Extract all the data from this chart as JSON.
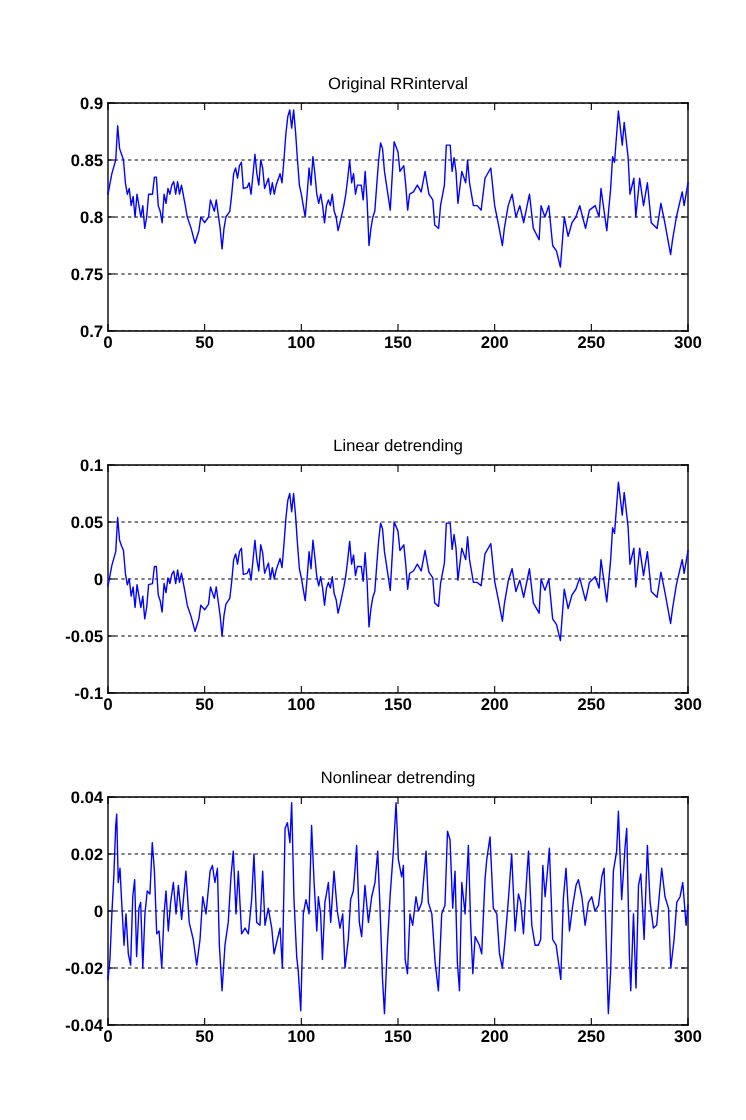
{
  "chart_data": [
    {
      "type": "line",
      "title": "Original RRinterval",
      "grid": "y",
      "line_style": "solid",
      "xlim": [
        0,
        300
      ],
      "xticks": [
        0,
        50,
        100,
        150,
        200,
        250,
        300
      ],
      "ylim": [
        0.7,
        0.9
      ],
      "yticks": [
        0.7,
        0.75,
        0.8,
        0.85,
        0.9
      ],
      "x": [
        0,
        2,
        4,
        5,
        6,
        7,
        8,
        9,
        10,
        11,
        12,
        13,
        14,
        15,
        16,
        17,
        18,
        19,
        20,
        21,
        23,
        24,
        25,
        26,
        27,
        28,
        29,
        30,
        31,
        32,
        33,
        34,
        35,
        36,
        37,
        38,
        40,
        41,
        43,
        45,
        47,
        48,
        50,
        52,
        53,
        55,
        56,
        58,
        59,
        60,
        61,
        63,
        64,
        65,
        66,
        67,
        68,
        69,
        70,
        72,
        73,
        74,
        76,
        77,
        78,
        79,
        80,
        81,
        83,
        84,
        85,
        86,
        87,
        89,
        90,
        91,
        92,
        93,
        94,
        95,
        96,
        97,
        98,
        99,
        100,
        101,
        102,
        103,
        104,
        105,
        106,
        107,
        108,
        109,
        110,
        111,
        112,
        113,
        114,
        115,
        116,
        117,
        118,
        119,
        120,
        122,
        123,
        124,
        125,
        126,
        127,
        128,
        129,
        131,
        132,
        133,
        134,
        135,
        136,
        137,
        138,
        139,
        140,
        141,
        142,
        143,
        146,
        148,
        150,
        151,
        153,
        154,
        155,
        156,
        158,
        160,
        162,
        164,
        166,
        168,
        169,
        171,
        172,
        174,
        175,
        177,
        178,
        179,
        180,
        181,
        183,
        185,
        186,
        187,
        189,
        191,
        193,
        195,
        198,
        200,
        202,
        204,
        205,
        207,
        209,
        211,
        213,
        215,
        218,
        220,
        223,
        224,
        226,
        228,
        230,
        232,
        234,
        236,
        238,
        240,
        242,
        244,
        247,
        249,
        252,
        254,
        255,
        258,
        260,
        261,
        262,
        264,
        266,
        267,
        269,
        270,
        272,
        273,
        275,
        277,
        279,
        281,
        284,
        286,
        288,
        291,
        292,
        294,
        297,
        298,
        300
      ],
      "series": [
        {
          "color": "#0000ff",
          "values": [
            0.82,
            0.838,
            0.85,
            0.88,
            0.86,
            0.855,
            0.85,
            0.83,
            0.82,
            0.825,
            0.81,
            0.818,
            0.8,
            0.82,
            0.81,
            0.8,
            0.81,
            0.79,
            0.8,
            0.82,
            0.82,
            0.835,
            0.835,
            0.81,
            0.805,
            0.795,
            0.82,
            0.812,
            0.825,
            0.82,
            0.828,
            0.831,
            0.82,
            0.831,
            0.82,
            0.828,
            0.81,
            0.8,
            0.79,
            0.777,
            0.788,
            0.8,
            0.795,
            0.8,
            0.815,
            0.805,
            0.815,
            0.79,
            0.772,
            0.79,
            0.8,
            0.805,
            0.82,
            0.838,
            0.843,
            0.834,
            0.845,
            0.848,
            0.825,
            0.826,
            0.83,
            0.82,
            0.855,
            0.838,
            0.828,
            0.85,
            0.843,
            0.825,
            0.834,
            0.82,
            0.83,
            0.82,
            0.828,
            0.838,
            0.83,
            0.85,
            0.873,
            0.888,
            0.894,
            0.878,
            0.894,
            0.875,
            0.85,
            0.828,
            0.82,
            0.81,
            0.8,
            0.82,
            0.843,
            0.828,
            0.853,
            0.838,
            0.82,
            0.812,
            0.82,
            0.81,
            0.795,
            0.81,
            0.815,
            0.81,
            0.82,
            0.805,
            0.8,
            0.788,
            0.795,
            0.81,
            0.82,
            0.834,
            0.85,
            0.83,
            0.838,
            0.82,
            0.828,
            0.828,
            0.815,
            0.84,
            0.815,
            0.775,
            0.79,
            0.8,
            0.805,
            0.828,
            0.85,
            0.865,
            0.86,
            0.84,
            0.806,
            0.866,
            0.857,
            0.84,
            0.845,
            0.828,
            0.806,
            0.82,
            0.822,
            0.828,
            0.822,
            0.84,
            0.82,
            0.815,
            0.793,
            0.79,
            0.81,
            0.828,
            0.863,
            0.863,
            0.84,
            0.852,
            0.84,
            0.812,
            0.84,
            0.83,
            0.85,
            0.83,
            0.81,
            0.81,
            0.806,
            0.834,
            0.843,
            0.81,
            0.793,
            0.775,
            0.79,
            0.81,
            0.82,
            0.8,
            0.81,
            0.795,
            0.82,
            0.79,
            0.78,
            0.81,
            0.8,
            0.81,
            0.775,
            0.77,
            0.756,
            0.8,
            0.783,
            0.795,
            0.8,
            0.81,
            0.79,
            0.806,
            0.81,
            0.8,
            0.825,
            0.788,
            0.825,
            0.853,
            0.848,
            0.893,
            0.863,
            0.883,
            0.853,
            0.82,
            0.834,
            0.8,
            0.834,
            0.81,
            0.83,
            0.795,
            0.79,
            0.812,
            0.795,
            0.767,
            0.78,
            0.8,
            0.822,
            0.81,
            0.83
          ]
        }
      ]
    },
    {
      "type": "line",
      "title": "Linear detrending",
      "grid": "y",
      "line_style": "solid",
      "xlim": [
        0,
        300
      ],
      "xticks": [
        0,
        50,
        100,
        150,
        200,
        250,
        300
      ],
      "ylim": [
        -0.1,
        0.1
      ],
      "yticks": [
        -0.1,
        -0.05,
        0,
        0.05,
        0.1
      ],
      "x": [
        0,
        2,
        4,
        5,
        6,
        7,
        8,
        9,
        10,
        11,
        12,
        13,
        14,
        15,
        16,
        17,
        18,
        19,
        20,
        21,
        23,
        24,
        25,
        26,
        27,
        28,
        29,
        30,
        31,
        32,
        33,
        34,
        35,
        36,
        37,
        38,
        40,
        41,
        43,
        45,
        47,
        48,
        50,
        52,
        53,
        55,
        56,
        58,
        59,
        60,
        61,
        63,
        64,
        65,
        66,
        67,
        68,
        69,
        70,
        72,
        73,
        74,
        76,
        77,
        78,
        79,
        80,
        81,
        83,
        84,
        85,
        86,
        87,
        89,
        90,
        91,
        92,
        93,
        94,
        95,
        96,
        97,
        98,
        99,
        100,
        101,
        102,
        103,
        104,
        105,
        106,
        107,
        108,
        109,
        110,
        111,
        112,
        113,
        114,
        115,
        116,
        117,
        118,
        119,
        120,
        122,
        123,
        124,
        125,
        126,
        127,
        128,
        129,
        131,
        132,
        133,
        134,
        135,
        136,
        137,
        138,
        139,
        140,
        141,
        142,
        143,
        146,
        148,
        150,
        151,
        153,
        154,
        155,
        156,
        158,
        160,
        162,
        164,
        166,
        168,
        169,
        171,
        172,
        174,
        175,
        177,
        178,
        179,
        180,
        181,
        183,
        185,
        186,
        187,
        189,
        191,
        193,
        195,
        198,
        200,
        202,
        204,
        205,
        207,
        209,
        211,
        213,
        215,
        218,
        220,
        223,
        224,
        226,
        228,
        230,
        232,
        234,
        236,
        238,
        240,
        242,
        244,
        247,
        249,
        252,
        254,
        255,
        258,
        260,
        261,
        262,
        264,
        266,
        267,
        269,
        270,
        272,
        273,
        275,
        277,
        279,
        281,
        284,
        286,
        288,
        291,
        292,
        294,
        297,
        298,
        300
      ],
      "series": [
        {
          "color": "#0000ff",
          "values": [
            -0.006,
            0.012,
            0.024,
            0.054,
            0.034,
            0.029,
            0.025,
            0.005,
            -0.005,
            0.0,
            -0.015,
            -0.007,
            -0.025,
            -0.005,
            -0.015,
            -0.025,
            -0.015,
            -0.035,
            -0.025,
            -0.005,
            -0.004,
            0.011,
            0.011,
            -0.014,
            -0.019,
            -0.029,
            -0.004,
            -0.012,
            0.001,
            -0.004,
            0.004,
            0.007,
            -0.004,
            0.008,
            -0.003,
            0.005,
            -0.013,
            -0.023,
            -0.033,
            -0.046,
            -0.035,
            -0.023,
            -0.027,
            -0.022,
            -0.007,
            -0.017,
            -0.007,
            -0.032,
            -0.05,
            -0.032,
            -0.022,
            -0.017,
            -0.002,
            0.017,
            0.022,
            0.013,
            0.024,
            0.027,
            0.004,
            0.005,
            0.009,
            -0.001,
            0.034,
            0.017,
            0.007,
            0.03,
            0.023,
            0.005,
            0.014,
            0.0,
            0.01,
            0.0,
            0.008,
            0.018,
            0.01,
            0.03,
            0.053,
            0.069,
            0.075,
            0.059,
            0.075,
            0.056,
            0.031,
            0.009,
            0.001,
            -0.009,
            -0.019,
            0.001,
            0.024,
            0.009,
            0.034,
            0.019,
            0.002,
            -0.006,
            0.002,
            -0.008,
            -0.023,
            -0.008,
            -0.003,
            -0.008,
            0.002,
            -0.013,
            -0.018,
            -0.03,
            -0.023,
            -0.007,
            0.003,
            0.017,
            0.033,
            0.013,
            0.021,
            0.003,
            0.011,
            0.011,
            -0.002,
            0.023,
            -0.002,
            -0.042,
            -0.026,
            -0.016,
            -0.011,
            0.012,
            0.034,
            0.049,
            0.044,
            0.024,
            -0.01,
            0.05,
            0.042,
            0.025,
            0.03,
            0.013,
            -0.009,
            0.005,
            0.007,
            0.013,
            0.007,
            0.025,
            0.006,
            0.001,
            -0.021,
            -0.024,
            -0.004,
            0.014,
            0.049,
            0.049,
            0.026,
            0.039,
            0.027,
            -0.001,
            0.027,
            0.017,
            0.037,
            0.017,
            -0.003,
            -0.003,
            -0.006,
            0.022,
            0.031,
            -0.002,
            -0.019,
            -0.037,
            -0.022,
            -0.002,
            0.009,
            -0.011,
            -0.001,
            -0.016,
            0.009,
            -0.021,
            -0.03,
            0.0,
            -0.01,
            0.0,
            -0.035,
            -0.04,
            -0.054,
            -0.009,
            -0.026,
            -0.014,
            -0.009,
            0.001,
            -0.019,
            -0.003,
            0.002,
            -0.008,
            0.017,
            -0.02,
            0.017,
            0.045,
            0.04,
            0.085,
            0.056,
            0.076,
            0.046,
            0.013,
            0.027,
            -0.007,
            0.027,
            0.003,
            0.024,
            -0.011,
            -0.016,
            0.006,
            -0.011,
            -0.039,
            -0.026,
            -0.005,
            0.017,
            0.005,
            0.025
          ]
        }
      ]
    },
    {
      "type": "line",
      "title": "Nonlinear detrending",
      "grid": "y",
      "line_style": "solid",
      "xlim": [
        0,
        300
      ],
      "xticks": [
        0,
        50,
        100,
        150,
        200,
        250,
        300
      ],
      "ylim": [
        -0.04,
        0.04
      ],
      "yticks": [
        -0.04,
        -0.02,
        0,
        0.02,
        0.04
      ],
      "x": [
        0,
        1,
        2,
        3,
        4,
        4.5,
        5.3,
        6.2,
        7,
        8.3,
        9.3,
        10.5,
        11.7,
        12.8,
        13.8,
        14.8,
        16,
        16.9,
        18,
        19.1,
        20.3,
        21.7,
        22.9,
        24,
        25.2,
        26.4,
        27.8,
        29,
        30,
        31.2,
        32.4,
        33.8,
        35.2,
        36.4,
        38.1,
        40.3,
        42,
        44.1,
        45.9,
        47.6,
        49,
        50.7,
        52.8,
        54,
        55.3,
        56.6,
        57.6,
        59,
        60.5,
        62.2,
        63.6,
        64.8,
        66.2,
        67.4,
        69.1,
        70.9,
        72.6,
        74.3,
        75.5,
        76.9,
        78.6,
        80,
        81.2,
        82.9,
        84.7,
        85.9,
        87.6,
        89,
        90.2,
        91.6,
        92.8,
        94.1,
        95,
        96.2,
        97.6,
        98.4,
        99.7,
        101,
        102.4,
        104,
        105.3,
        106.6,
        108,
        108.8,
        110,
        110.9,
        112.2,
        114,
        115.2,
        116.9,
        118.6,
        120,
        121.4,
        122.6,
        124.3,
        125.5,
        126.9,
        127.8,
        128.6,
        130,
        131.2,
        132.9,
        134.7,
        136.4,
        138.1,
        139.5,
        140.7,
        142,
        143,
        144.5,
        145.9,
        147.6,
        149,
        150.2,
        151.9,
        152.8,
        153.7,
        154.9,
        156.2,
        157.6,
        159.3,
        160.6,
        162.3,
        163.5,
        164.5,
        165.7,
        167.5,
        169.2,
        170.9,
        172.6,
        174.3,
        175.6,
        176.9,
        178.3,
        179.5,
        180.7,
        181.8,
        183,
        184.7,
        186.4,
        187.6,
        188.7,
        189.9,
        192.1,
        193.3,
        195,
        195.9,
        197.6,
        199.3,
        201.1,
        202.5,
        204,
        205.4,
        207.1,
        208.8,
        210.6,
        212.3,
        213.5,
        214.9,
        216.6,
        217.5,
        219.2,
        220.9,
        222.6,
        223.8,
        224.9,
        226.1,
        227.3,
        228.3,
        230,
        231.8,
        234.2,
        235.5,
        236.9,
        238.7,
        240.4,
        242.1,
        243.3,
        245.1,
        246.8,
        248.5,
        250.2,
        251.9,
        253.7,
        255.4,
        256.6,
        258,
        258.8,
        260,
        261.4,
        263.1,
        264,
        265.7,
        267.5,
        268.3,
        269.7,
        270.4,
        271.8,
        273.1,
        274.4,
        275.6,
        277.3,
        279,
        280.4,
        282.1,
        283.8,
        286.4,
        288.1,
        289.9,
        291.1,
        292.8,
        294.2,
        295.9,
        297.3,
        299,
        300
      ],
      "series": [
        {
          "color": "#0000ff",
          "values": [
            -0.024,
            -0.017,
            -0.001,
            0.012,
            0.03,
            0.034,
            0.01,
            0.015,
            0.004,
            -0.012,
            -0.001,
            -0.015,
            -0.019,
            0.005,
            0.011,
            -0.016,
            0.001,
            0.003,
            -0.02,
            -0.001,
            0.007,
            0.006,
            0.024,
            0.014,
            -0.008,
            -0.007,
            -0.02,
            -0.001,
            0.007,
            -0.007,
            0.003,
            0.01,
            -0.001,
            0.009,
            -0.003,
            0.014,
            -0.004,
            -0.01,
            -0.019,
            -0.01,
            0.005,
            -0.001,
            0.014,
            0.016,
            0.01,
            0.015,
            -0.012,
            -0.028,
            -0.012,
            -0.004,
            0.012,
            0.021,
            -0.001,
            0.014,
            -0.008,
            -0.006,
            -0.008,
            0.004,
            0.02,
            -0.004,
            -0.005,
            0.014,
            -0.005,
            0.001,
            -0.006,
            -0.015,
            -0.01,
            -0.006,
            -0.02,
            0.029,
            0.031,
            0.024,
            0.038,
            0.004,
            -0.016,
            -0.021,
            -0.035,
            -0.001,
            0.004,
            -0.001,
            0.03,
            0.01,
            -0.007,
            0.005,
            -0.001,
            -0.017,
            0.003,
            0.01,
            -0.004,
            0.014,
            0.0,
            -0.006,
            -0.001,
            -0.02,
            -0.01,
            0.004,
            0.007,
            0.015,
            0.023,
            -0.004,
            -0.009,
            0.009,
            -0.004,
            0.005,
            0.01,
            0.021,
            0.001,
            -0.024,
            -0.036,
            -0.012,
            0.005,
            0.021,
            0.038,
            0.018,
            0.012,
            0.016,
            -0.017,
            -0.022,
            -0.001,
            -0.005,
            0.005,
            0.0,
            0.003,
            0.013,
            0.021,
            0.003,
            -0.001,
            -0.018,
            -0.028,
            -0.001,
            0.002,
            0.028,
            0.025,
            0.001,
            0.014,
            -0.018,
            -0.028,
            0.01,
            -0.001,
            0.023,
            -0.005,
            -0.022,
            -0.009,
            -0.012,
            -0.015,
            0.011,
            0.018,
            0.026,
            0.001,
            -0.001,
            -0.015,
            -0.02,
            -0.01,
            0.004,
            0.02,
            -0.007,
            0.006,
            0.003,
            -0.008,
            0.012,
            0.021,
            -0.005,
            -0.012,
            -0.012,
            -0.01,
            0.016,
            0.005,
            0.014,
            0.022,
            -0.01,
            -0.012,
            -0.024,
            0.004,
            0.015,
            -0.007,
            0.002,
            0.009,
            0.011,
            0.005,
            -0.005,
            0.003,
            0.005,
            0.0,
            0.002,
            0.012,
            0.015,
            -0.018,
            -0.036,
            -0.021,
            0.014,
            0.021,
            0.035,
            0.004,
            0.023,
            0.029,
            -0.016,
            -0.028,
            -0.001,
            -0.027,
            0.009,
            0.013,
            -0.01,
            0.023,
            0.003,
            -0.006,
            -0.005,
            0.015,
            0.005,
            0.001,
            -0.02,
            -0.01,
            0.003,
            0.005,
            0.01,
            -0.005,
            0.002
          ]
        }
      ]
    }
  ]
}
